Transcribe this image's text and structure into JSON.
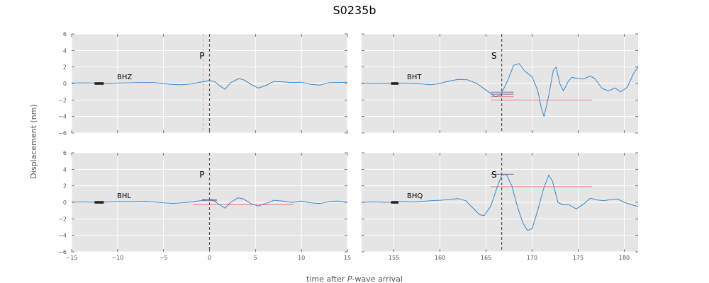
{
  "chart_data": {
    "type": "line",
    "title": "S0235b",
    "xlabel_prefix": "time after ",
    "xlabel_italic": "P",
    "xlabel_suffix": "-wave arrival",
    "ylabel": "Displacement (nm)",
    "ylim": [
      -6,
      6
    ],
    "yticks": [
      -6,
      -4,
      -2,
      0,
      2,
      4,
      6
    ],
    "colors": {
      "trace": "#3a87c8",
      "panel_bg": "#e5e5e5",
      "grid": "#ffffff",
      "arrival": "#555555",
      "alt_arrival": "#e8a0a0",
      "noise": "#222222",
      "pick_red": "#e88080",
      "pick_purple": "#8a6aa0"
    },
    "panels": [
      {
        "channel": "BHZ",
        "phase": "P",
        "xlim": [
          -15,
          15
        ],
        "xticks": [
          -15,
          -10,
          -5,
          0,
          5,
          10,
          15
        ],
        "arrival": 0,
        "alt_arrival": -0.7,
        "noise_window": [
          -12.5,
          -11.5
        ],
        "picks": [],
        "trace": [
          [
            -15,
            0.05
          ],
          [
            -14,
            0.08
          ],
          [
            -13,
            0.06
          ],
          [
            -12,
            0.04
          ],
          [
            -11,
            0.0
          ],
          [
            -10,
            0.05
          ],
          [
            -9,
            0.08
          ],
          [
            -8,
            0.1
          ],
          [
            -7,
            0.12
          ],
          [
            -6,
            0.1
          ],
          [
            -5,
            -0.02
          ],
          [
            -4,
            -0.12
          ],
          [
            -3,
            -0.15
          ],
          [
            -2,
            -0.05
          ],
          [
            -1,
            0.15
          ],
          [
            0,
            0.35
          ],
          [
            0.6,
            0.2
          ],
          [
            1,
            -0.2
          ],
          [
            1.7,
            -0.7
          ],
          [
            2.3,
            0.1
          ],
          [
            3.2,
            0.6
          ],
          [
            3.8,
            0.4
          ],
          [
            4.5,
            -0.1
          ],
          [
            5.3,
            -0.55
          ],
          [
            6,
            -0.3
          ],
          [
            7,
            0.25
          ],
          [
            8,
            0.2
          ],
          [
            9,
            0.1
          ],
          [
            10,
            0.15
          ],
          [
            11,
            -0.1
          ],
          [
            12,
            -0.2
          ],
          [
            13,
            0.1
          ],
          [
            14,
            0.12
          ],
          [
            15,
            0.15
          ]
        ]
      },
      {
        "channel": "BHT",
        "phase": "S",
        "xlim": [
          151.5,
          181.5
        ],
        "xticks": [
          155,
          160,
          165,
          170,
          175,
          180
        ],
        "arrival": 166.7,
        "noise_window": [
          154.7,
          155.5
        ],
        "picks": [
          {
            "y": -2.0,
            "x": [
              165.5,
              176.5
            ],
            "color": "pick_red"
          },
          {
            "y": -1.6,
            "x": [
              165.5,
              168
            ],
            "color": "pick_red"
          },
          {
            "y": -1.3,
            "x": [
              165.5,
              168
            ],
            "color": "pick_purple"
          },
          {
            "y": -1.05,
            "x": [
              165.5,
              168
            ],
            "color": "pick_purple"
          }
        ],
        "trace": [
          [
            151.5,
            0.05
          ],
          [
            153,
            0.0
          ],
          [
            154,
            0.03
          ],
          [
            155,
            0.0
          ],
          [
            156,
            0.05
          ],
          [
            157,
            0.02
          ],
          [
            158,
            -0.05
          ],
          [
            159,
            -0.15
          ],
          [
            160,
            0.0
          ],
          [
            161,
            0.3
          ],
          [
            162,
            0.5
          ],
          [
            163,
            0.45
          ],
          [
            164,
            0.0
          ],
          [
            165,
            -0.8
          ],
          [
            166,
            -1.6
          ],
          [
            166.6,
            -1.4
          ],
          [
            167.4,
            0.5
          ],
          [
            168,
            2.2
          ],
          [
            168.6,
            2.4
          ],
          [
            169.2,
            1.5
          ],
          [
            170,
            0.8
          ],
          [
            170.6,
            -0.8
          ],
          [
            171,
            -3.0
          ],
          [
            171.3,
            -4.0
          ],
          [
            171.8,
            -1.5
          ],
          [
            172.3,
            1.6
          ],
          [
            172.6,
            2.0
          ],
          [
            173,
            0.0
          ],
          [
            173.4,
            -0.9
          ],
          [
            173.9,
            0.2
          ],
          [
            174.3,
            0.75
          ],
          [
            175,
            0.6
          ],
          [
            175.6,
            0.55
          ],
          [
            176.3,
            0.9
          ],
          [
            176.8,
            0.6
          ],
          [
            177.6,
            -0.6
          ],
          [
            178.3,
            -0.9
          ],
          [
            179,
            -0.55
          ],
          [
            179.6,
            -1.0
          ],
          [
            180.3,
            -0.5
          ],
          [
            181,
            1.2
          ],
          [
            181.5,
            2.0
          ]
        ]
      },
      {
        "channel": "BHL",
        "phase": "P",
        "xlim": [
          -15,
          15
        ],
        "xticks": [
          -15,
          -10,
          -5,
          0,
          5,
          10,
          15
        ],
        "arrival": 0,
        "noise_window": [
          -12.5,
          -11.5
        ],
        "picks": [
          {
            "y": -0.3,
            "x": [
              -1.8,
              9.2
            ],
            "color": "pick_red"
          },
          {
            "y": 0.2,
            "x": [
              -0.8,
              0.8
            ],
            "color": "pick_purple"
          },
          {
            "y": 0.35,
            "x": [
              -0.8,
              0.8
            ],
            "color": "pick_purple"
          }
        ],
        "trace": [
          [
            -15,
            0.02
          ],
          [
            -14,
            0.05
          ],
          [
            -13,
            0.03
          ],
          [
            -12,
            0.0
          ],
          [
            -11,
            0.05
          ],
          [
            -10,
            0.1
          ],
          [
            -9,
            0.08
          ],
          [
            -8,
            0.1
          ],
          [
            -7,
            0.12
          ],
          [
            -6,
            0.05
          ],
          [
            -5,
            -0.05
          ],
          [
            -4,
            -0.12
          ],
          [
            -3,
            -0.05
          ],
          [
            -2,
            0.05
          ],
          [
            -1,
            0.2
          ],
          [
            0,
            0.4
          ],
          [
            0.6,
            0.1
          ],
          [
            1.1,
            -0.3
          ],
          [
            1.7,
            -0.7
          ],
          [
            2.3,
            0.0
          ],
          [
            3.1,
            0.55
          ],
          [
            3.7,
            0.4
          ],
          [
            4.6,
            -0.2
          ],
          [
            5.3,
            -0.45
          ],
          [
            6.2,
            -0.1
          ],
          [
            7,
            0.25
          ],
          [
            8,
            0.15
          ],
          [
            9,
            0.0
          ],
          [
            10,
            0.15
          ],
          [
            11,
            -0.05
          ],
          [
            12,
            -0.15
          ],
          [
            13,
            0.1
          ],
          [
            14,
            0.15
          ],
          [
            15,
            0.0
          ]
        ]
      },
      {
        "channel": "BHQ",
        "phase": "S",
        "xlim": [
          151.5,
          181.5
        ],
        "xticks": [
          155,
          160,
          165,
          170,
          175,
          180
        ],
        "arrival": 166.7,
        "noise_window": [
          154.7,
          155.5
        ],
        "picks": [
          {
            "y": 1.9,
            "x": [
              165.5,
              176.5
            ],
            "color": "pick_red"
          },
          {
            "y": 3.4,
            "x": [
              165.5,
              168
            ],
            "color": "pick_purple"
          }
        ],
        "trace": [
          [
            151.5,
            0.02
          ],
          [
            153,
            0.05
          ],
          [
            154,
            0.0
          ],
          [
            155,
            0.02
          ],
          [
            156,
            0.1
          ],
          [
            157,
            0.05
          ],
          [
            158,
            0.1
          ],
          [
            159,
            0.2
          ],
          [
            160,
            0.25
          ],
          [
            161,
            0.35
          ],
          [
            162,
            0.45
          ],
          [
            162.8,
            0.2
          ],
          [
            163.5,
            -0.6
          ],
          [
            164.3,
            -1.5
          ],
          [
            164.8,
            -1.6
          ],
          [
            165.5,
            -0.5
          ],
          [
            166.2,
            1.8
          ],
          [
            166.7,
            3.3
          ],
          [
            167.2,
            3.4
          ],
          [
            167.8,
            2.0
          ],
          [
            168.4,
            -0.5
          ],
          [
            169,
            -2.5
          ],
          [
            169.5,
            -3.4
          ],
          [
            170,
            -3.2
          ],
          [
            170.6,
            -1.0
          ],
          [
            171.2,
            1.5
          ],
          [
            171.8,
            3.3
          ],
          [
            172.2,
            2.6
          ],
          [
            172.8,
            0.0
          ],
          [
            173.3,
            -0.3
          ],
          [
            174,
            -0.3
          ],
          [
            174.8,
            -0.8
          ],
          [
            175.6,
            -0.2
          ],
          [
            176.3,
            0.5
          ],
          [
            177,
            0.3
          ],
          [
            177.8,
            0.2
          ],
          [
            178.6,
            0.35
          ],
          [
            179.3,
            0.4
          ],
          [
            180,
            0.0
          ],
          [
            180.8,
            -0.3
          ],
          [
            181.5,
            -0.5
          ]
        ]
      }
    ]
  }
}
